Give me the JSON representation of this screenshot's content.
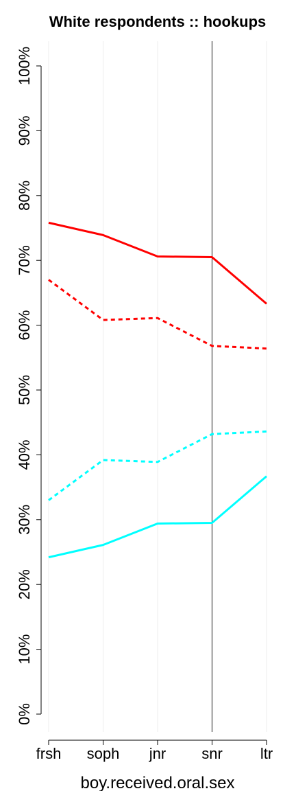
{
  "chart_data": {
    "type": "line",
    "title": "White respondents :: hookups",
    "xlabel": "boy.received.oral.sex",
    "ylabel": "",
    "categories": [
      "frsh",
      "soph",
      "jnr",
      "snr",
      "ltr"
    ],
    "ylim": [
      0,
      100
    ],
    "yticks": [
      0,
      10,
      20,
      30,
      40,
      50,
      60,
      70,
      80,
      90,
      100
    ],
    "ytick_labels": [
      "0%",
      "10%",
      "20%",
      "30%",
      "40%",
      "50%",
      "60%",
      "70%",
      "80%",
      "90%",
      "100%"
    ],
    "grid": "vertical",
    "reference_line_category": "snr",
    "series": [
      {
        "color": "#ff0000",
        "style": "solid",
        "values": [
          75.8,
          73.9,
          70.6,
          70.5,
          63.3
        ]
      },
      {
        "color": "#ff0000",
        "style": "dashed",
        "values": [
          67.0,
          60.8,
          61.1,
          56.8,
          56.4
        ]
      },
      {
        "color": "#00ffff",
        "style": "dashed",
        "values": [
          33.0,
          39.2,
          38.9,
          43.2,
          43.6
        ]
      },
      {
        "color": "#00ffff",
        "style": "solid",
        "values": [
          24.2,
          26.1,
          29.4,
          29.5,
          36.7
        ]
      }
    ]
  }
}
